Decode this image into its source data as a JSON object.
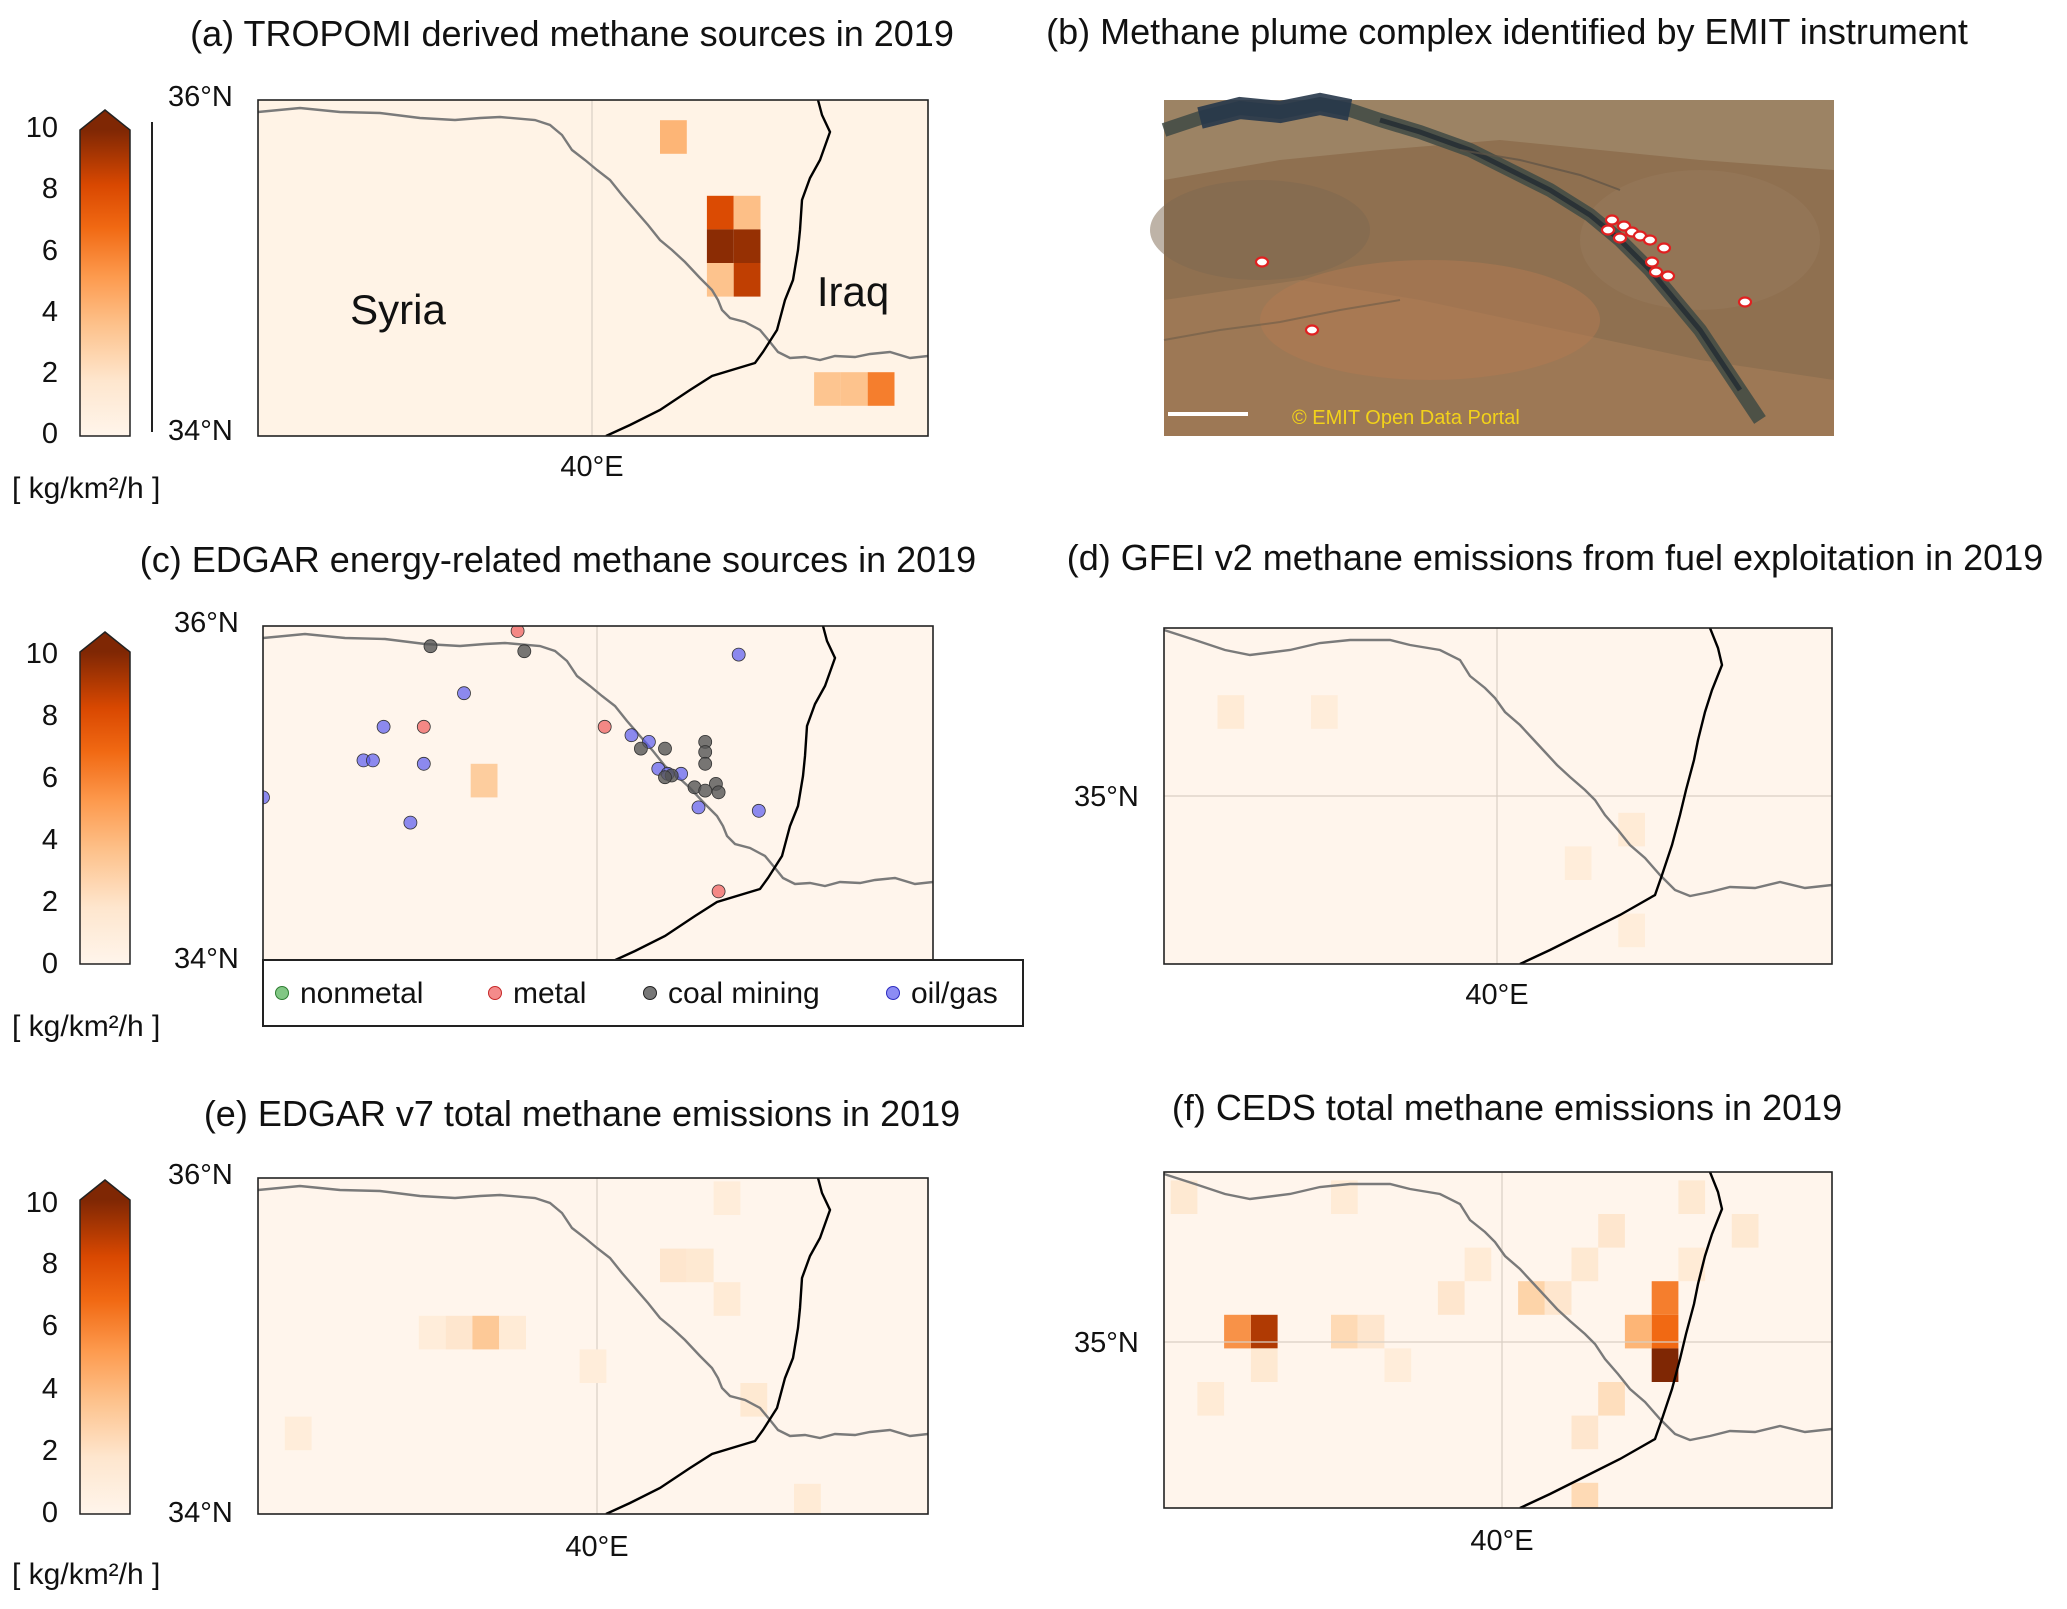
{
  "panels": [
    {
      "id": "a",
      "title": "(a) TROPOMI derived methane sources in 2019",
      "lat_labels": [
        "36°N",
        "34°N"
      ],
      "lon_label": "40°E",
      "countries": [
        "Syria",
        "Iraq"
      ],
      "colorbar": {
        "ticks": [
          "10",
          "8",
          "6",
          "4",
          "2",
          "0"
        ],
        "unit": "[ kg/km²/h ]",
        "extend": "max",
        "ramp": [
          "#fff3e6",
          "#fdd0a2",
          "#fdae6b",
          "#f16913",
          "#d94801",
          "#a63603",
          "#7f2704"
        ]
      },
      "cells": [
        {
          "lon": 40.1,
          "lat": 35.78,
          "value": 3
        },
        {
          "lon": 40.45,
          "lat": 35.33,
          "value": 6.5
        },
        {
          "lon": 40.65,
          "lat": 35.33,
          "value": 2.5
        },
        {
          "lon": 40.45,
          "lat": 35.13,
          "value": 9.5
        },
        {
          "lon": 40.65,
          "lat": 35.13,
          "value": 9
        },
        {
          "lon": 40.45,
          "lat": 34.93,
          "value": 2.3
        },
        {
          "lon": 40.65,
          "lat": 34.93,
          "value": 7.5
        },
        {
          "lon": 41.25,
          "lat": 34.28,
          "value": 2.2
        },
        {
          "lon": 41.45,
          "lat": 34.28,
          "value": 2.3
        },
        {
          "lon": 41.65,
          "lat": 34.28,
          "value": 4.5
        }
      ]
    },
    {
      "id": "b",
      "title": "(b) Methane plume complex identified by EMIT instrument",
      "credit": "© EMIT Open Data Portal",
      "plumes": 14
    },
    {
      "id": "c",
      "title": "(c) EDGAR energy-related methane sources in 2019",
      "lat_labels": [
        "36°N",
        "34°N"
      ],
      "colorbar": {
        "ticks": [
          "10",
          "8",
          "6",
          "4",
          "2",
          "0"
        ],
        "unit": "[ kg/km²/h ]"
      },
      "legend": [
        {
          "label": "nonmetal",
          "color": "#4caf50"
        },
        {
          "label": "metal",
          "color": "#f05a5a"
        },
        {
          "label": "coal mining",
          "color": "#555555"
        },
        {
          "label": "oil/gas",
          "color": "#5b5bf0"
        }
      ],
      "cells": [
        {
          "lon": 38.65,
          "lat": 35.08,
          "value": 1.8
        }
      ],
      "points": [
        {
          "lon": 38.9,
          "lat": 35.97,
          "type": "metal"
        },
        {
          "lon": 38.25,
          "lat": 35.88,
          "type": "coal mining"
        },
        {
          "lon": 38.95,
          "lat": 35.85,
          "type": "coal mining"
        },
        {
          "lon": 40.55,
          "lat": 35.83,
          "type": "oil/gas"
        },
        {
          "lon": 38.5,
          "lat": 35.6,
          "type": "oil/gas"
        },
        {
          "lon": 37.9,
          "lat": 35.4,
          "type": "oil/gas"
        },
        {
          "lon": 38.2,
          "lat": 35.4,
          "type": "metal"
        },
        {
          "lon": 39.55,
          "lat": 35.4,
          "type": "metal"
        },
        {
          "lon": 39.75,
          "lat": 35.35,
          "type": "oil/gas"
        },
        {
          "lon": 39.88,
          "lat": 35.31,
          "type": "oil/gas"
        },
        {
          "lon": 40.3,
          "lat": 35.31,
          "type": "coal mining"
        },
        {
          "lon": 39.82,
          "lat": 35.27,
          "type": "coal mining"
        },
        {
          "lon": 40.0,
          "lat": 35.27,
          "type": "coal mining"
        },
        {
          "lon": 40.3,
          "lat": 35.25,
          "type": "coal mining"
        },
        {
          "lon": 37.75,
          "lat": 35.2,
          "type": "oil/gas"
        },
        {
          "lon": 37.82,
          "lat": 35.2,
          "type": "oil/gas"
        },
        {
          "lon": 38.2,
          "lat": 35.18,
          "type": "oil/gas"
        },
        {
          "lon": 39.95,
          "lat": 35.15,
          "type": "oil/gas"
        },
        {
          "lon": 40.3,
          "lat": 35.18,
          "type": "coal mining"
        },
        {
          "lon": 40.12,
          "lat": 35.12,
          "type": "oil/gas"
        },
        {
          "lon": 40.02,
          "lat": 35.12,
          "type": "oil/gas"
        },
        {
          "lon": 40.05,
          "lat": 35.11,
          "type": "coal mining"
        },
        {
          "lon": 40.0,
          "lat": 35.1,
          "type": "coal mining"
        },
        {
          "lon": 40.38,
          "lat": 35.06,
          "type": "coal mining"
        },
        {
          "lon": 40.22,
          "lat": 35.04,
          "type": "coal mining"
        },
        {
          "lon": 40.3,
          "lat": 35.02,
          "type": "coal mining"
        },
        {
          "lon": 40.4,
          "lat": 35.01,
          "type": "coal mining"
        },
        {
          "lon": 37.0,
          "lat": 34.98,
          "type": "oil/gas"
        },
        {
          "lon": 40.25,
          "lat": 34.92,
          "type": "oil/gas"
        },
        {
          "lon": 40.7,
          "lat": 34.9,
          "type": "oil/gas"
        },
        {
          "lon": 38.1,
          "lat": 34.83,
          "type": "oil/gas"
        },
        {
          "lon": 40.4,
          "lat": 34.42,
          "type": "metal"
        }
      ]
    },
    {
      "id": "d",
      "title": "(d) GFEI v2 methane emissions from fuel exploitation in 2019",
      "lat_labels": [
        "35°N"
      ],
      "lon_label": "40°E",
      "cells": [
        {
          "lon": 38.0,
          "lat": 35.5,
          "value": 0.4
        },
        {
          "lon": 38.7,
          "lat": 35.5,
          "value": 0.3
        },
        {
          "lon": 41.0,
          "lat": 34.8,
          "value": 0.4
        },
        {
          "lon": 41.0,
          "lat": 34.2,
          "value": 0.3
        },
        {
          "lon": 40.6,
          "lat": 34.6,
          "value": 0.3
        }
      ]
    },
    {
      "id": "e",
      "title": "(e) EDGAR v7 total methane emissions in 2019",
      "lat_labels": [
        "36°N",
        "34°N"
      ],
      "lon_label": "40°E",
      "colorbar": {
        "ticks": [
          "10",
          "8",
          "6",
          "4",
          "2",
          "0"
        ],
        "unit": "[ kg/km²/h ]"
      },
      "cells": [
        {
          "lon": 38.5,
          "lat": 35.08,
          "value": 0.6
        },
        {
          "lon": 38.7,
          "lat": 35.08,
          "value": 2
        },
        {
          "lon": 38.9,
          "lat": 35.08,
          "value": 0.4
        },
        {
          "lon": 38.3,
          "lat": 35.08,
          "value": 0.3
        },
        {
          "lon": 40.1,
          "lat": 35.48,
          "value": 0.6
        },
        {
          "lon": 40.3,
          "lat": 35.48,
          "value": 0.5
        },
        {
          "lon": 40.5,
          "lat": 35.28,
          "value": 0.4
        },
        {
          "lon": 40.7,
          "lat": 34.68,
          "value": 0.5
        },
        {
          "lon": 41.1,
          "lat": 34.08,
          "value": 0.4
        },
        {
          "lon": 40.5,
          "lat": 35.88,
          "value": 0.3
        },
        {
          "lon": 39.5,
          "lat": 34.88,
          "value": 0.3
        },
        {
          "lon": 37.3,
          "lat": 34.48,
          "value": 0.3
        }
      ]
    },
    {
      "id": "f",
      "title": "(f) CEDS total methane emissions in 2019",
      "lat_labels": [
        "35°N"
      ],
      "lon_label": "40°E",
      "cells": [
        {
          "lon": 38.05,
          "lat": 35.05,
          "value": 4
        },
        {
          "lon": 38.25,
          "lat": 35.05,
          "value": 8
        },
        {
          "lon": 38.85,
          "lat": 35.05,
          "value": 1.2
        },
        {
          "lon": 39.05,
          "lat": 35.05,
          "value": 0.6
        },
        {
          "lon": 39.65,
          "lat": 35.25,
          "value": 0.6
        },
        {
          "lon": 40.25,
          "lat": 35.25,
          "value": 1.5
        },
        {
          "lon": 40.45,
          "lat": 35.25,
          "value": 0.6
        },
        {
          "lon": 41.05,
          "lat": 35.05,
          "value": 3
        },
        {
          "lon": 41.25,
          "lat": 35.25,
          "value": 4.5
        },
        {
          "lon": 41.25,
          "lat": 35.05,
          "value": 5
        },
        {
          "lon": 41.25,
          "lat": 34.85,
          "value": 10
        },
        {
          "lon": 40.85,
          "lat": 34.65,
          "value": 1
        },
        {
          "lon": 40.65,
          "lat": 34.45,
          "value": 0.6
        },
        {
          "lon": 40.65,
          "lat": 34.05,
          "value": 1.2
        },
        {
          "lon": 38.25,
          "lat": 34.85,
          "value": 0.5
        },
        {
          "lon": 37.85,
          "lat": 34.65,
          "value": 0.4
        },
        {
          "lon": 40.85,
          "lat": 35.65,
          "value": 0.6
        },
        {
          "lon": 41.45,
          "lat": 35.85,
          "value": 0.5
        },
        {
          "lon": 41.85,
          "lat": 35.65,
          "value": 0.5
        },
        {
          "lon": 38.85,
          "lat": 35.85,
          "value": 0.4
        },
        {
          "lon": 37.65,
          "lat": 35.85,
          "value": 0.5
        },
        {
          "lon": 39.85,
          "lat": 35.45,
          "value": 0.4
        },
        {
          "lon": 40.65,
          "lat": 35.45,
          "value": 0.5
        },
        {
          "lon": 41.45,
          "lat": 35.45,
          "value": 0.4
        },
        {
          "lon": 39.25,
          "lat": 34.85,
          "value": 0.3
        }
      ]
    }
  ]
}
